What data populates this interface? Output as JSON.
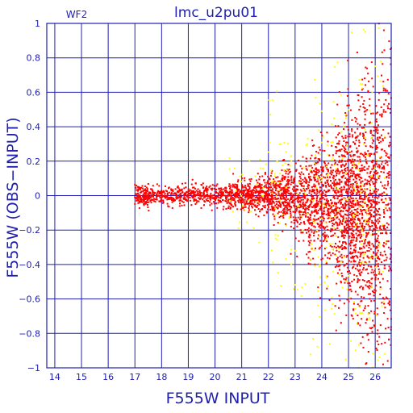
{
  "colors": {
    "axis": "#2020b0",
    "grid": "#2020b0",
    "series_main": "#ff0000",
    "series_secondary": "#ffff00"
  },
  "chart_data": {
    "type": "scatter",
    "title": "lmc_u2pu01",
    "panel_label": "WF2",
    "xlabel": "F555W INPUT",
    "ylabel": "F555W (OBS−INPUT)",
    "xlim": [
      13.7,
      26.6
    ],
    "ylim": [
      -1,
      1
    ],
    "grid": true,
    "x_ticks": [
      "14",
      "15",
      "16",
      "17",
      "18",
      "19",
      "20",
      "21",
      "22",
      "23",
      "24",
      "25",
      "26"
    ],
    "y_ticks": [
      "1",
      "0.8",
      "0.6",
      "0.4",
      "0.2",
      "0",
      "−0.2",
      "−0.4",
      "−0.6",
      "−0.8",
      "−1"
    ],
    "series": [
      {
        "color": "#ff0000",
        "bands": [
          {
            "x": [
              17.0,
              17.5
            ],
            "y_spread": 0.03,
            "density": 120
          },
          {
            "x": [
              17.5,
              19.0
            ],
            "y_spread": 0.025,
            "density": 220
          },
          {
            "x": [
              19.0,
              20.5
            ],
            "y_spread": 0.03,
            "density": 240
          },
          {
            "x": [
              20.5,
              21.5
            ],
            "y_spread": 0.04,
            "density": 260
          },
          {
            "x": [
              21.5,
              22.5
            ],
            "y_spread": 0.06,
            "density": 300
          },
          {
            "x": [
              22.5,
              23.5
            ],
            "y_spread": 0.09,
            "density": 360
          },
          {
            "x": [
              23.5,
              24.5
            ],
            "y_spread": 0.14,
            "density": 480
          },
          {
            "x": [
              24.5,
              25.3
            ],
            "y_spread": 0.22,
            "density": 600
          },
          {
            "x": [
              25.3,
              26.1
            ],
            "y_spread": 0.3,
            "density": 640
          },
          {
            "x": [
              26.1,
              26.6
            ],
            "y_spread": 0.45,
            "density": 260
          }
        ]
      },
      {
        "color": "#ffff00",
        "bands": [
          {
            "x": [
              20.5,
              22.0
            ],
            "y_spread": 0.12,
            "density": 30
          },
          {
            "x": [
              22.0,
              23.5
            ],
            "y_spread": 0.25,
            "density": 70
          },
          {
            "x": [
              23.5,
              25.0
            ],
            "y_spread": 0.4,
            "density": 110
          },
          {
            "x": [
              25.0,
              26.4
            ],
            "y_spread": 0.55,
            "density": 130
          }
        ]
      }
    ]
  }
}
